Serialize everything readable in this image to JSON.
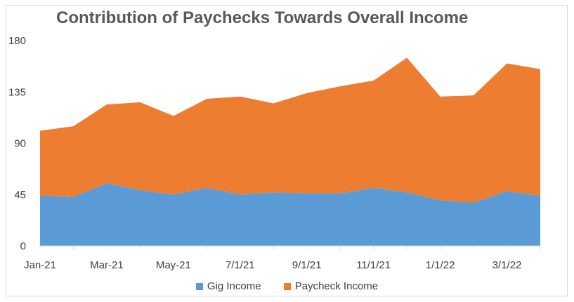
{
  "chart_data": {
    "type": "area",
    "stacked": true,
    "title": "Contribution of Paychecks Towards Overall Income",
    "x": [
      "Jan-21",
      "Feb-21",
      "Mar-21",
      "Apr-21",
      "May-21",
      "Jun-21",
      "7/1/21",
      "8/1/21",
      "9/1/21",
      "10/1/21",
      "11/1/21",
      "12/1/21",
      "1/1/22",
      "2/1/22",
      "3/1/22",
      "4/1/22"
    ],
    "x_tick_labels": [
      "Jan-21",
      "",
      "Mar-21",
      "",
      "May-21",
      "",
      "7/1/21",
      "",
      "9/1/21",
      "",
      "11/1/21",
      "",
      "1/1/22",
      "",
      "3/1/22",
      ""
    ],
    "series": [
      {
        "name": "Gig Income",
        "color": "#5b9bd5",
        "values": [
          44,
          43,
          55,
          49,
          45,
          51,
          45,
          47,
          46,
          46,
          51,
          47,
          40,
          38,
          48,
          44
        ]
      },
      {
        "name": "Paycheck Income",
        "color": "#ed7d31",
        "values": [
          57,
          62,
          69,
          77,
          69,
          78,
          86,
          78,
          88,
          94,
          94,
          118,
          91,
          94,
          112,
          111
        ]
      }
    ],
    "ylim": [
      0,
      180
    ],
    "y_ticks": [
      0,
      45,
      90,
      135,
      180
    ],
    "grid": false,
    "legend_position": "bottom"
  }
}
